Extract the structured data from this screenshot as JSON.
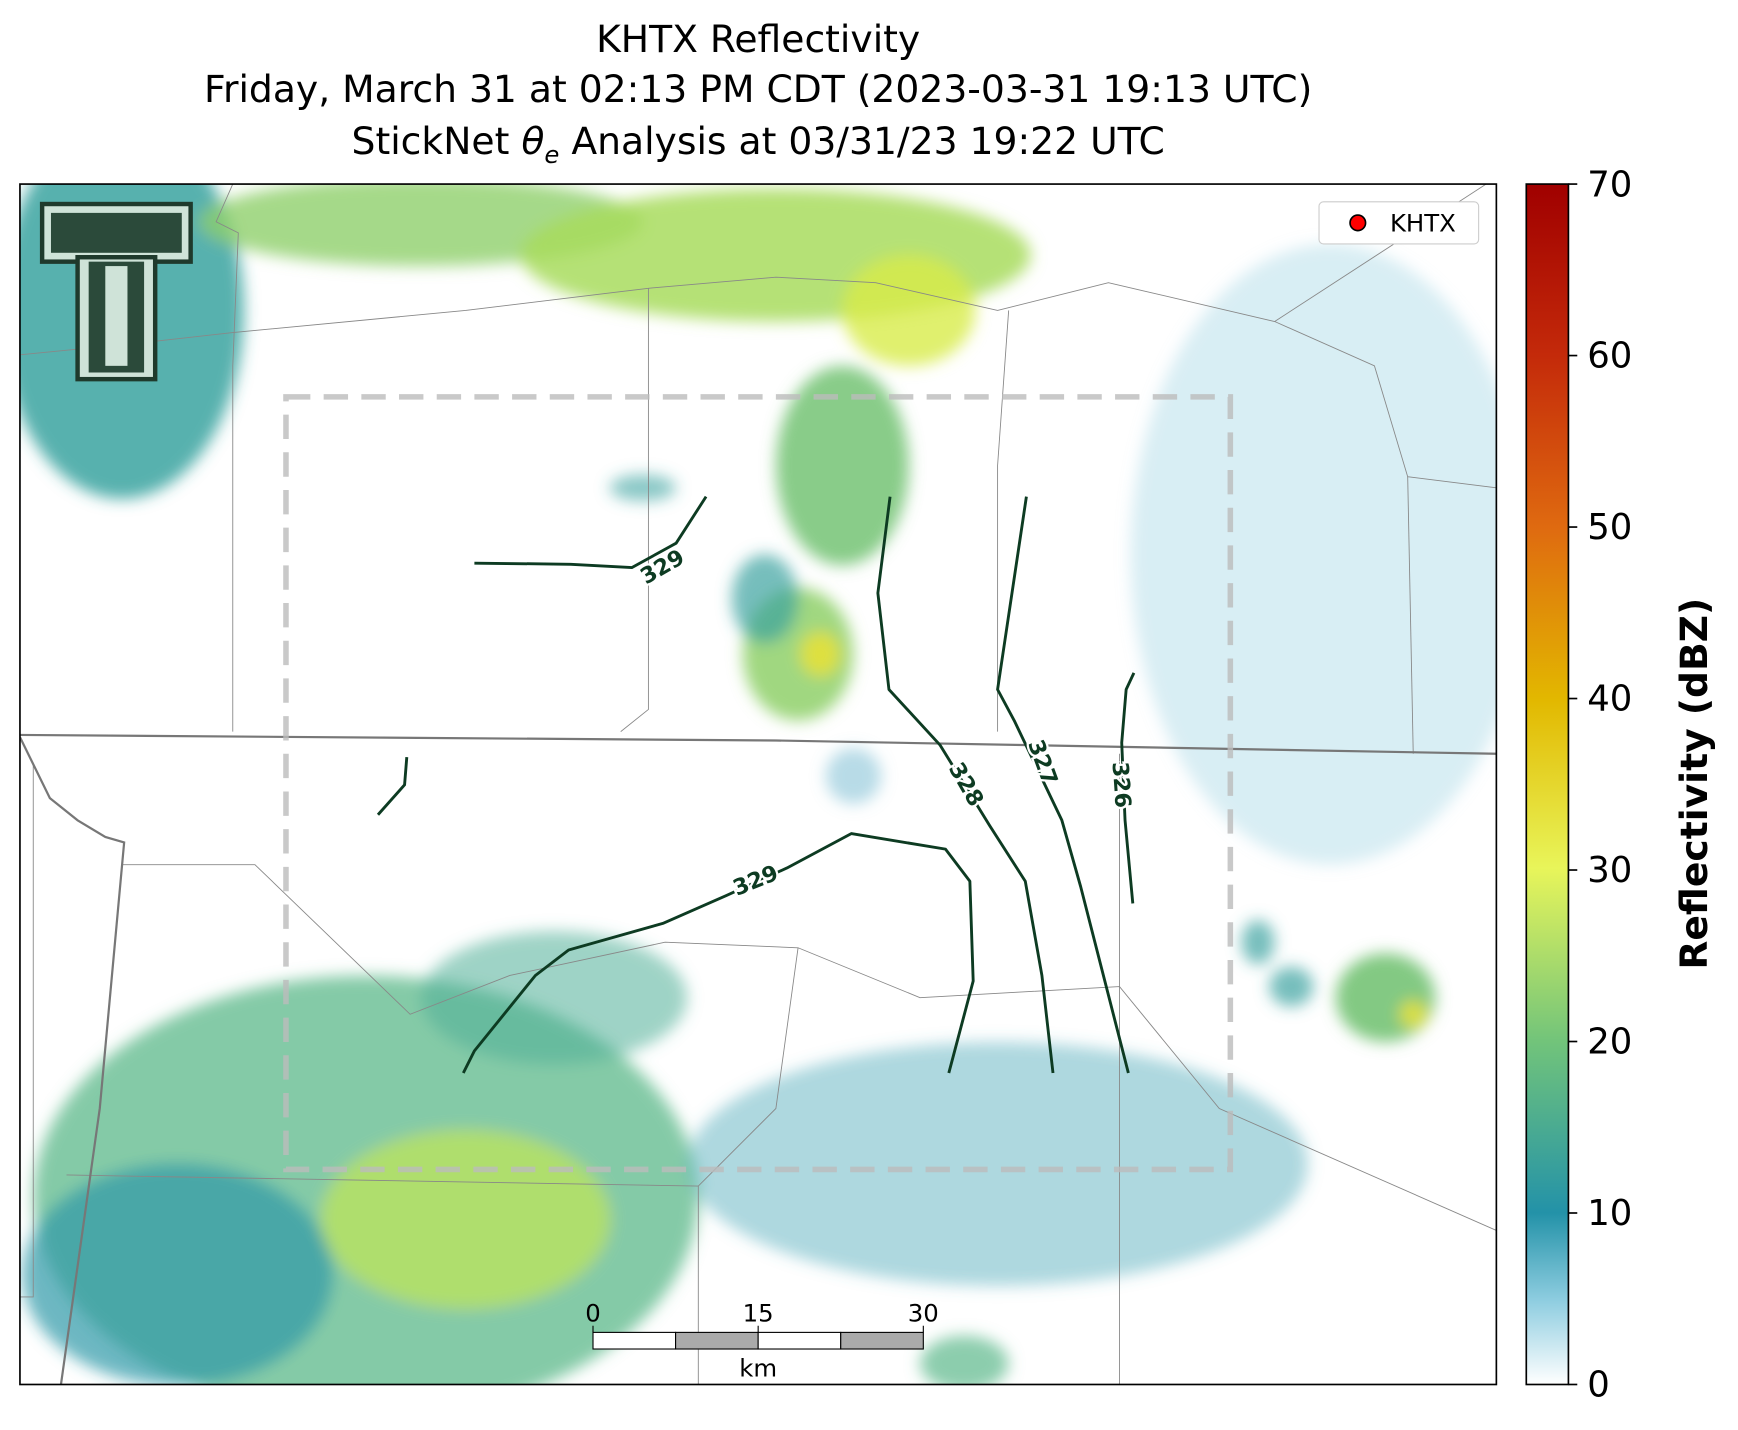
{
  "title": {
    "line1": "KHTX Reflectivity",
    "line2": "Friday, March 31 at 02:13 PM CDT (2023-03-31 19:13 UTC)",
    "line3": {
      "prefix": "StickNet ",
      "symbol": "θ",
      "subscript": "e",
      "suffix": " Analysis at 03/31/23 19:22 UTC"
    }
  },
  "legend": {
    "label": "KHTX",
    "marker_color": "#ff0000"
  },
  "contours": [
    {
      "level": 329
    },
    {
      "level": 329
    },
    {
      "level": 328
    },
    {
      "level": 327
    },
    {
      "level": 326
    }
  ],
  "scale_bar": {
    "ticks": [
      0,
      15,
      30
    ],
    "unit": "km"
  },
  "colorbar": {
    "label": "Reflectivity (dBZ)",
    "lim": [
      0,
      70
    ],
    "ticks": [
      0,
      10,
      20,
      30,
      40,
      50,
      60,
      70
    ]
  }
}
